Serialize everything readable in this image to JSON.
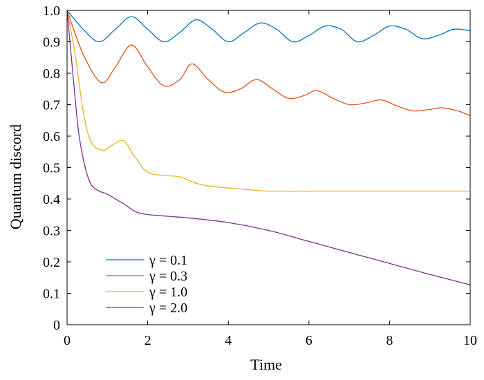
{
  "chart_data": {
    "type": "line",
    "title": "",
    "xlabel": "Time",
    "ylabel": "Quantum discord",
    "xlim": [
      0,
      10
    ],
    "ylim": [
      0,
      1.0
    ],
    "xticks": [
      0,
      2,
      4,
      6,
      8,
      10
    ],
    "xtick_labels": [
      "0",
      "2",
      "4",
      "6",
      "8",
      "10"
    ],
    "yticks": [
      0,
      0.1,
      0.2,
      0.3,
      0.4,
      0.5,
      0.6,
      0.7,
      0.8,
      0.9,
      1.0
    ],
    "ytick_labels": [
      "0",
      "0.1",
      "0.2",
      "0.3",
      "0.4",
      "0.5",
      "0.6",
      "0.7",
      "0.8",
      "0.9",
      "1.0"
    ],
    "grid": false,
    "legend_position": "bottom-left",
    "series": [
      {
        "name": "γ = 0.1",
        "color": "#0072BD",
        "x": [
          0,
          0.4,
          0.8,
          1.2,
          1.6,
          2.0,
          2.4,
          2.8,
          3.2,
          3.6,
          4.0,
          4.4,
          4.8,
          5.2,
          5.6,
          6.0,
          6.4,
          6.8,
          7.2,
          7.6,
          8.0,
          8.4,
          8.8,
          9.2,
          9.6,
          10.0
        ],
        "values": [
          1.0,
          0.94,
          0.9,
          0.94,
          0.98,
          0.94,
          0.9,
          0.93,
          0.97,
          0.94,
          0.9,
          0.93,
          0.96,
          0.94,
          0.9,
          0.92,
          0.95,
          0.94,
          0.9,
          0.92,
          0.95,
          0.94,
          0.91,
          0.92,
          0.94,
          0.935
        ]
      },
      {
        "name": "γ = 0.3",
        "color": "#D95319",
        "x": [
          0,
          0.4,
          0.85,
          1.2,
          1.6,
          2.0,
          2.4,
          2.8,
          3.1,
          3.5,
          3.9,
          4.3,
          4.7,
          5.1,
          5.5,
          5.9,
          6.2,
          6.6,
          7.0,
          7.4,
          7.8,
          8.2,
          8.6,
          9.0,
          9.3,
          9.7,
          10.0
        ],
        "values": [
          1.0,
          0.86,
          0.77,
          0.82,
          0.89,
          0.82,
          0.76,
          0.78,
          0.83,
          0.78,
          0.74,
          0.75,
          0.78,
          0.75,
          0.72,
          0.73,
          0.745,
          0.72,
          0.7,
          0.705,
          0.715,
          0.695,
          0.68,
          0.685,
          0.69,
          0.68,
          0.665
        ]
      },
      {
        "name": "γ = 1.0",
        "color": "#EDB120",
        "x": [
          0,
          0.2,
          0.4,
          0.6,
          0.9,
          1.1,
          1.4,
          1.7,
          2.0,
          2.4,
          2.8,
          3.2,
          3.6,
          4.0,
          4.5,
          5.0,
          6.0,
          7.0,
          8.0,
          9.0,
          10.0
        ],
        "values": [
          1.0,
          0.86,
          0.68,
          0.58,
          0.555,
          0.57,
          0.585,
          0.53,
          0.485,
          0.475,
          0.47,
          0.45,
          0.44,
          0.435,
          0.43,
          0.425,
          0.425,
          0.425,
          0.425,
          0.425,
          0.425
        ]
      },
      {
        "name": "γ = 2.0",
        "color": "#7E2F8E",
        "x": [
          0,
          0.1,
          0.2,
          0.3,
          0.45,
          0.6,
          0.8,
          1.0,
          1.4,
          1.8,
          2.5,
          3.0,
          4.0,
          5.0,
          6.0,
          7.0,
          8.0,
          9.0,
          10.0
        ],
        "values": [
          1.0,
          0.86,
          0.72,
          0.6,
          0.5,
          0.445,
          0.425,
          0.415,
          0.385,
          0.355,
          0.345,
          0.34,
          0.325,
          0.3,
          0.265,
          0.23,
          0.195,
          0.16,
          0.127
        ]
      }
    ]
  }
}
